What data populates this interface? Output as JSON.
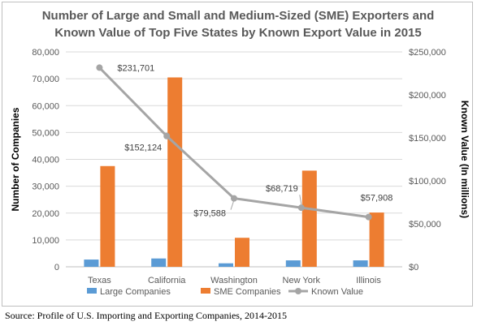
{
  "title_line1": "Number of Large and Small and Medium-Sized (SME) Exporters and",
  "title_line2": "Known Value of Top Five States by Known Export Value in 2015",
  "source": "Source: Profile of U.S. Importing and Exporting Companies, 2014-2015",
  "colors": {
    "large": "#5b9bd5",
    "sme": "#ed7d31",
    "value": "#a5a5a5",
    "text": "#595959",
    "grid": "#d9d9d9"
  },
  "chart_data": {
    "type": "bar",
    "categories": [
      "Texas",
      "California",
      "Washington",
      "New York",
      "Illinois"
    ],
    "series": [
      {
        "name": "Large Companies",
        "type": "bar",
        "axis": "left",
        "values": [
          2700,
          3100,
          1300,
          2400,
          2400
        ]
      },
      {
        "name": "SME Companies",
        "type": "bar",
        "axis": "left",
        "values": [
          37500,
          70500,
          10800,
          35800,
          20200
        ]
      },
      {
        "name": "Known Value",
        "type": "line",
        "axis": "right",
        "values": [
          231701,
          152124,
          79588,
          68719,
          57908
        ],
        "labels": [
          "$231,701",
          "$152,124",
          "$79,588",
          "$68,719",
          "$57,908"
        ]
      }
    ],
    "ylabel": "Number of Companies",
    "ylim": [
      0,
      80000
    ],
    "yticks": [
      "0",
      "10,000",
      "20,000",
      "30,000",
      "40,000",
      "50,000",
      "60,000",
      "70,000",
      "80,000"
    ],
    "y2label": "Known Value (In millions)",
    "y2lim": [
      0,
      250000
    ],
    "y2ticks": [
      "$0",
      "$50,000",
      "$100,000",
      "$150,000",
      "$200,000",
      "$250,000"
    ],
    "grid": true,
    "legend": "bottom"
  }
}
